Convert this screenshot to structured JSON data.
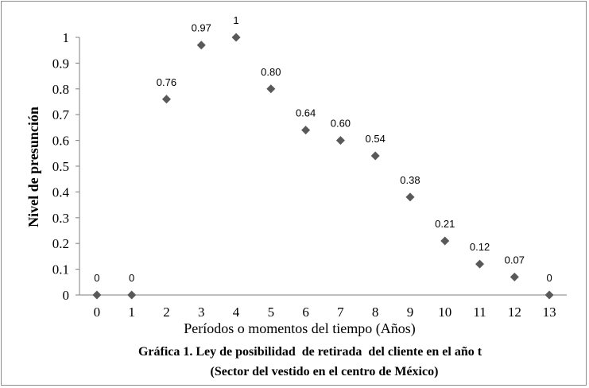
{
  "chart_data": {
    "type": "scatter",
    "x": [
      0,
      1,
      2,
      3,
      4,
      5,
      6,
      7,
      8,
      9,
      10,
      11,
      12,
      13
    ],
    "y": [
      0,
      0,
      0.76,
      0.97,
      1,
      0.8,
      0.64,
      0.6,
      0.54,
      0.38,
      0.21,
      0.12,
      0.07,
      0
    ],
    "data_labels": [
      "0",
      "0",
      "0.76",
      "0.97",
      "1",
      "0.80",
      "0.64",
      "0.60",
      "0.54",
      "0.38",
      "0.21",
      "0.12",
      "0.07",
      "0"
    ],
    "x_ticks": [
      "0",
      "1",
      "2",
      "3",
      "4",
      "5",
      "6",
      "7",
      "8",
      "9",
      "10",
      "11",
      "12",
      "13"
    ],
    "y_ticks": [
      "0",
      "0.1",
      "0.2",
      "0.3",
      "0.4",
      "0.5",
      "0.6",
      "0.7",
      "0.8",
      "0.9",
      "1"
    ],
    "xlabel": "Períodos o momentos del tiempo (Años)",
    "ylabel": "Nivel de presunción",
    "caption_line1": "Gráfica 1. Ley de posibilidad  de retirada  del cliente en el año t",
    "caption_line2": "(Sector del vestido en el centro de México)",
    "xlim": [
      -0.5,
      13.5
    ],
    "ylim": [
      0,
      1
    ],
    "marker": "diamond",
    "marker_color": "#595959",
    "grid": false,
    "legend": "none"
  }
}
